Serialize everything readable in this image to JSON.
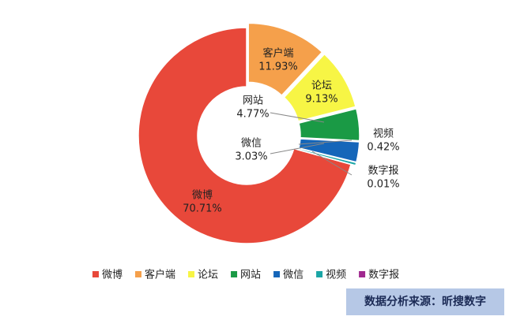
{
  "chart_data": {
    "type": "donut",
    "categories": [
      "微博",
      "客户端",
      "论坛",
      "网站",
      "微信",
      "视频",
      "数字报"
    ],
    "values": [
      70.71,
      11.93,
      9.13,
      4.77,
      3.03,
      0.42,
      0.01
    ],
    "value_labels": [
      "70.71%",
      "11.93%",
      "9.13%",
      "4.77%",
      "3.03%",
      "0.42%",
      "0.01%"
    ],
    "colors": [
      "#e8483a",
      "#f5a04b",
      "#f7f545",
      "#1a9a45",
      "#1566b9",
      "#1aa6a6",
      "#a0288f"
    ],
    "legend": "bottom"
  },
  "source": "数据分析来源：昕搜数字"
}
